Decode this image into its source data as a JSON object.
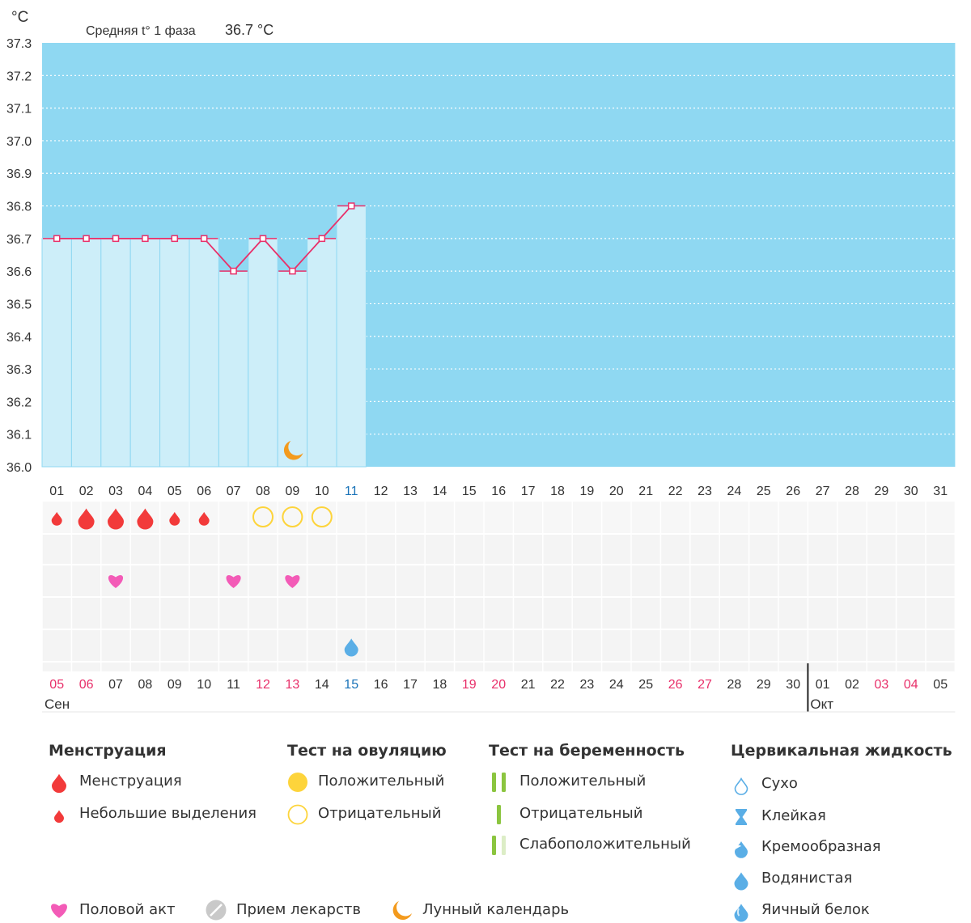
{
  "chart_data": {
    "type": "line",
    "yunit": "°C",
    "ylim": [
      36.0,
      37.3
    ],
    "yticks": [
      "37.3",
      "37.2",
      "37.1",
      "37.0",
      "36.9",
      "36.8",
      "36.7",
      "36.6",
      "36.5",
      "36.4",
      "36.3",
      "36.2",
      "36.1",
      "36.0"
    ],
    "stat_label": "Средняя t° 1 фаза",
    "stat_value": "36.7 °C",
    "cycle_days": [
      "01",
      "02",
      "03",
      "04",
      "05",
      "06",
      "07",
      "08",
      "09",
      "10",
      "11",
      "12",
      "13",
      "14",
      "15",
      "16",
      "17",
      "18",
      "19",
      "20",
      "21",
      "22",
      "23",
      "24",
      "25",
      "26",
      "27",
      "28",
      "29",
      "30",
      "31"
    ],
    "current_day_index": 10,
    "series": [
      {
        "values": [
          36.7,
          36.7,
          36.7,
          36.7,
          36.7,
          36.7,
          36.6,
          36.7,
          36.6,
          36.7,
          36.8
        ]
      }
    ],
    "lunar_marker_day_index": 8,
    "grid": true
  },
  "calendar": {
    "dates": [
      "05",
      "06",
      "07",
      "08",
      "09",
      "10",
      "11",
      "12",
      "13",
      "14",
      "15",
      "16",
      "17",
      "18",
      "19",
      "20",
      "21",
      "22",
      "23",
      "24",
      "25",
      "26",
      "27",
      "28",
      "29",
      "30",
      "01",
      "02",
      "03",
      "04",
      "05"
    ],
    "weekend_indices": [
      0,
      1,
      7,
      8,
      14,
      15,
      21,
      22,
      28,
      29
    ],
    "today_index": 10,
    "month_labels": [
      {
        "text": "Сен",
        "start_index": 0
      },
      {
        "text": "Окт",
        "start_index": 26
      }
    ]
  },
  "markers": {
    "menstruation": [
      {
        "day_index": 0,
        "type": "light"
      },
      {
        "day_index": 1,
        "type": "heavy"
      },
      {
        "day_index": 2,
        "type": "heavy"
      },
      {
        "day_index": 3,
        "type": "heavy"
      },
      {
        "day_index": 4,
        "type": "light"
      },
      {
        "day_index": 5,
        "type": "light"
      }
    ],
    "ovulation_negative": [
      7,
      8,
      9
    ],
    "intercourse": [
      2,
      6,
      8
    ],
    "cervical_watery": [
      10
    ]
  },
  "legend": {
    "groups": [
      {
        "title": "Менструация",
        "items": [
          {
            "label": "Менструация",
            "icon": "drop-red-large-icon"
          },
          {
            "label": "Небольшие выделения",
            "icon": "drop-red-small-icon"
          }
        ]
      },
      {
        "title": "Тест на овуляцию",
        "items": [
          {
            "label": "Положительный",
            "icon": "yellow-filled-circle-icon"
          },
          {
            "label": "Отрицательный",
            "icon": "yellow-outline-circle-icon"
          }
        ]
      },
      {
        "title": "Тест на беременность",
        "items": [
          {
            "label": "Положительный",
            "icon": "two-green-bars-icon"
          },
          {
            "label": "Отрицательный",
            "icon": "one-green-bar-icon"
          },
          {
            "label": "Слабоположительный",
            "icon": "green-and-pale-bars-icon"
          }
        ]
      },
      {
        "title": "Цервикальная жидкость",
        "items": [
          {
            "label": "Сухо",
            "icon": "drop-outline-icon"
          },
          {
            "label": "Клейкая",
            "icon": "hourglass-icon"
          },
          {
            "label": "Кремообразная",
            "icon": "drop-half-icon"
          },
          {
            "label": "Водянистая",
            "icon": "drop-blue-icon"
          },
          {
            "label": "Яичный белок",
            "icon": "drop-egg-white-icon"
          }
        ]
      }
    ],
    "bottom": [
      {
        "label": "Половой акт",
        "icon": "heart-icon"
      },
      {
        "label": "Прием лекарств",
        "icon": "pill-icon"
      },
      {
        "label": "Лунный календарь",
        "icon": "moon-icon"
      }
    ]
  },
  "colors": {
    "future_bg": "#8fd8f2",
    "past_column": "#cdeef9",
    "line": "#e8306a",
    "blood": "#f23a3a",
    "heart": "#f35bb7",
    "ovulation": "#fdd43b",
    "moon": "#f39a1d",
    "pregnancy": "#8bc53f",
    "cervical": "#5aaee6",
    "weekend_text": "#e8306a",
    "today_text": "#1a73b8"
  }
}
